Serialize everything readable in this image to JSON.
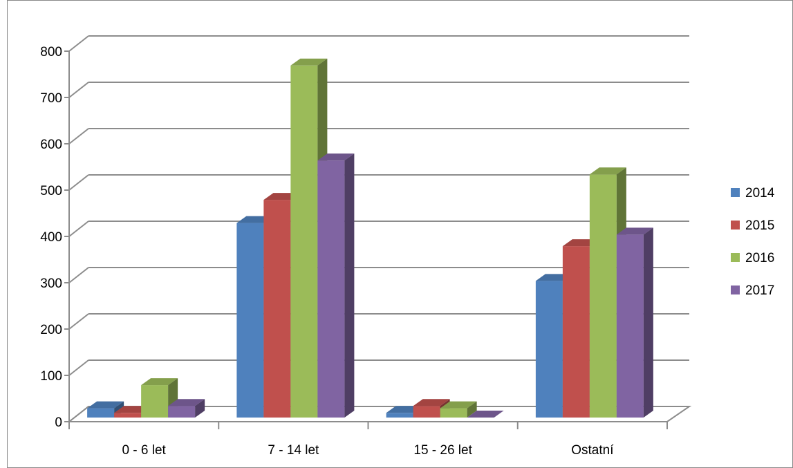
{
  "chart_data": {
    "type": "bar",
    "title": "",
    "xlabel": "",
    "ylabel": "",
    "categories": [
      "0 - 6 let",
      "7 - 14 let",
      "15 - 26 let",
      "Ostatní"
    ],
    "series": [
      {
        "name": "2014",
        "color": "#4F81BD",
        "values": [
          20,
          420,
          10,
          295
        ]
      },
      {
        "name": "2015",
        "color": "#C0504D",
        "values": [
          10,
          470,
          25,
          370
        ]
      },
      {
        "name": "2016",
        "color": "#9BBB59",
        "values": [
          70,
          760,
          20,
          525
        ]
      },
      {
        "name": "2017",
        "color": "#8064A2",
        "values": [
          25,
          555,
          0,
          395
        ]
      }
    ],
    "ylim": [
      0,
      800
    ],
    "yticks": [
      "0",
      "100",
      "200",
      "300",
      "400",
      "500",
      "600",
      "700",
      "800"
    ],
    "grid": true,
    "legend_position": "right",
    "style": "3d-clustered-column"
  }
}
